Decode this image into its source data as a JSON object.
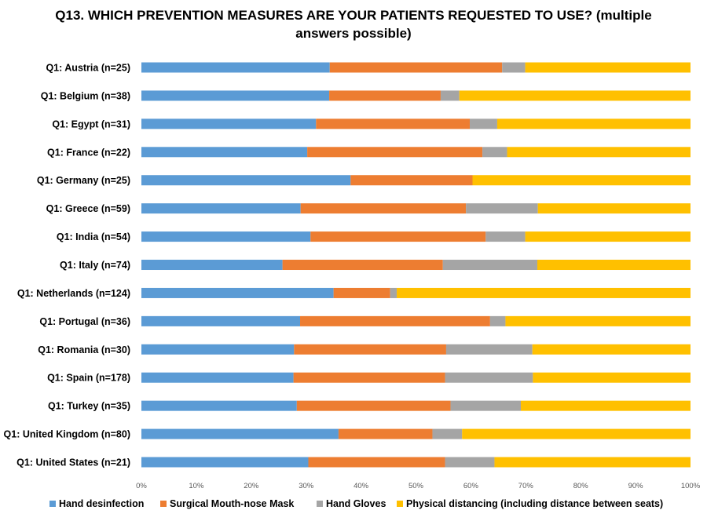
{
  "chart_data": {
    "type": "bar",
    "orientation": "horizontal",
    "stacked": "percent",
    "title": "Q13. WHICH PREVENTION MEASURES ARE YOUR PATIENTS REQUESTED TO USE? (multiple answers possible)",
    "categories": [
      "Q1: Austria (n=25)",
      "Q1: Belgium (n=38)",
      "Q1: Egypt (n=31)",
      "Q1: France (n=22)",
      "Q1: Germany (n=25)",
      "Q1: Greece (n=59)",
      "Q1: India (n=54)",
      "Q1: Italy (n=74)",
      "Q1: Netherlands (n=124)",
      "Q1: Portugal (n=36)",
      "Q1: Romania (n=30)",
      "Q1: Spain (n=178)",
      "Q1: Turkey (n=35)",
      "Q1: United Kingdom (n=80)",
      "Q1: United States (n=21)"
    ],
    "series": [
      {
        "name": "Hand desinfection",
        "color": "#5b9bd5",
        "values": [
          34.3,
          34.2,
          31.8,
          30.2,
          38.1,
          29.0,
          30.8,
          25.7,
          35.0,
          28.9,
          27.8,
          27.7,
          28.3,
          35.9,
          30.4
        ]
      },
      {
        "name": "Surgical Mouth-nose Mask",
        "color": "#ed7d31",
        "values": [
          31.4,
          20.3,
          28.0,
          31.9,
          22.2,
          30.1,
          31.9,
          29.2,
          10.3,
          34.6,
          27.7,
          27.6,
          28.0,
          17.1,
          24.9
        ]
      },
      {
        "name": "Hand Gloves",
        "color": "#a5a5a5",
        "values": [
          4.2,
          3.4,
          5.0,
          4.5,
          0.0,
          13.1,
          7.2,
          17.2,
          1.2,
          2.8,
          15.7,
          16.0,
          12.8,
          5.4,
          9.0
        ]
      },
      {
        "name": "Physical distancing (including distance between seats)",
        "color": "#ffc000",
        "values": [
          30.1,
          42.1,
          35.2,
          33.4,
          39.7,
          27.8,
          30.1,
          27.9,
          53.5,
          33.7,
          28.8,
          28.7,
          30.9,
          41.6,
          35.7
        ]
      }
    ],
    "xlim": [
      0,
      100
    ],
    "x_ticks": [
      "0%",
      "10%",
      "20%",
      "30%",
      "40%",
      "50%",
      "60%",
      "70%",
      "80%",
      "90%",
      "100%"
    ],
    "grid": false,
    "legend_position": "bottom"
  }
}
